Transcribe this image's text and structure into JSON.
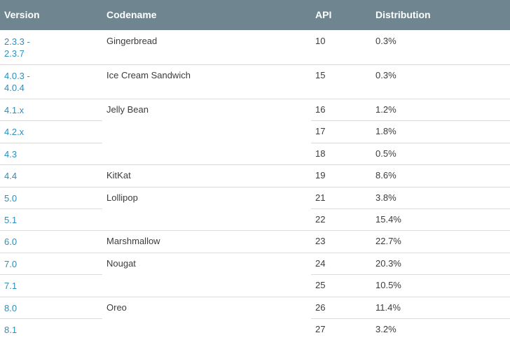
{
  "header": {
    "version": "Version",
    "codename": "Codename",
    "api": "API",
    "distribution": "Distribution"
  },
  "groups": [
    {
      "codename": "Gingerbread",
      "rows": [
        {
          "version": "2.3.3 -\n2.3.7",
          "api": "10",
          "distribution": "0.3%"
        }
      ]
    },
    {
      "codename": "Ice Cream Sandwich",
      "rows": [
        {
          "version": "4.0.3 -\n4.0.4",
          "api": "15",
          "distribution": "0.3%"
        }
      ]
    },
    {
      "codename": "Jelly Bean",
      "rows": [
        {
          "version": "4.1.x",
          "api": "16",
          "distribution": "1.2%"
        },
        {
          "version": "4.2.x",
          "api": "17",
          "distribution": "1.8%"
        },
        {
          "version": "4.3",
          "api": "18",
          "distribution": "0.5%"
        }
      ]
    },
    {
      "codename": "KitKat",
      "rows": [
        {
          "version": "4.4",
          "api": "19",
          "distribution": "8.6%"
        }
      ]
    },
    {
      "codename": "Lollipop",
      "rows": [
        {
          "version": "5.0",
          "api": "21",
          "distribution": "3.8%"
        },
        {
          "version": "5.1",
          "api": "22",
          "distribution": "15.4%"
        }
      ]
    },
    {
      "codename": "Marshmallow",
      "rows": [
        {
          "version": "6.0",
          "api": "23",
          "distribution": "22.7%"
        }
      ]
    },
    {
      "codename": "Nougat",
      "rows": [
        {
          "version": "7.0",
          "api": "24",
          "distribution": "20.3%"
        },
        {
          "version": "7.1",
          "api": "25",
          "distribution": "10.5%"
        }
      ]
    },
    {
      "codename": "Oreo",
      "rows": [
        {
          "version": "8.0",
          "api": "26",
          "distribution": "11.4%"
        },
        {
          "version": "8.1",
          "api": "27",
          "distribution": "3.2%"
        }
      ]
    }
  ]
}
